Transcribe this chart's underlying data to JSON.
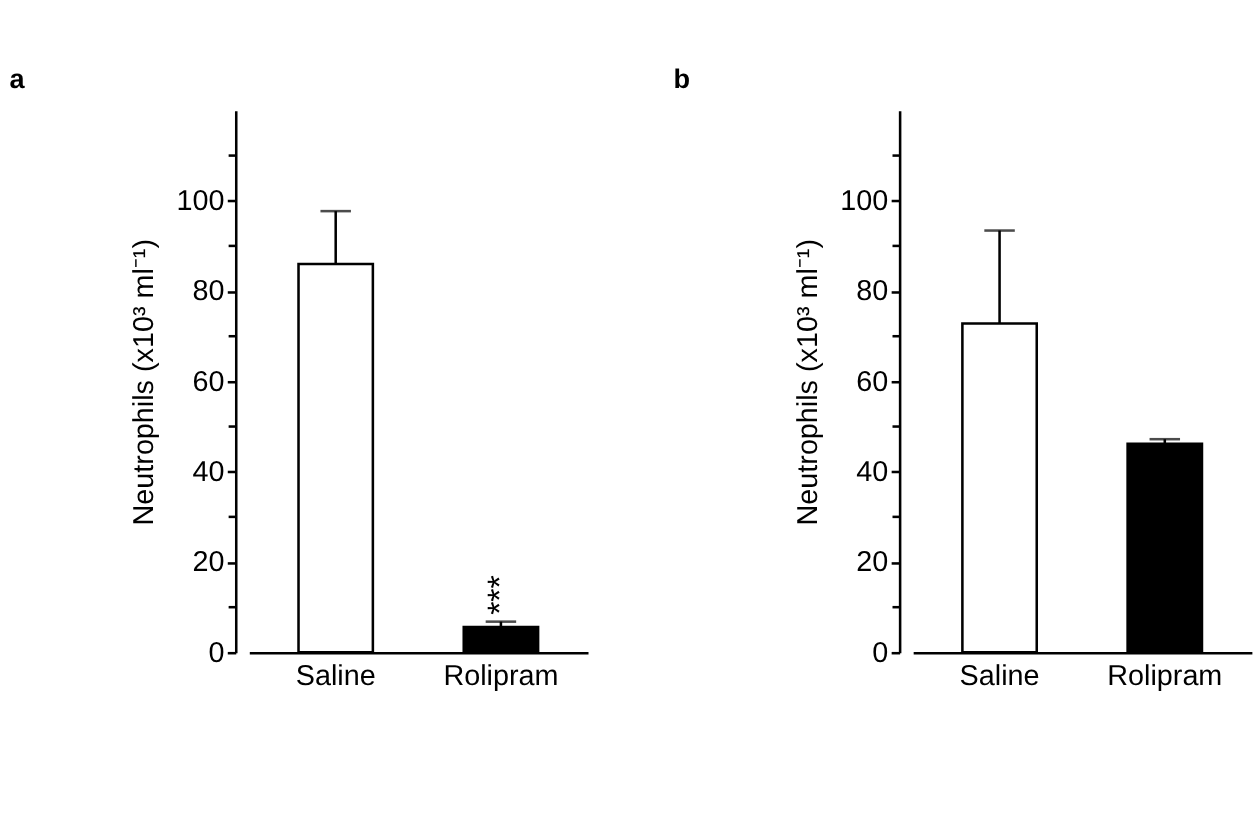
{
  "chart_data": [
    {
      "type": "bar",
      "title": "a",
      "ylabel": "Neutrophils (x10³ ml⁻¹)",
      "categories": [
        "Saline",
        "Rolipram"
      ],
      "values": [
        86,
        5.6
      ],
      "errors": [
        11.7,
        1.2
      ],
      "colors": [
        "#ffffff",
        "#000000"
      ],
      "ylim": [
        0,
        120
      ],
      "yticks": [
        0,
        {
          "value": 10,
          "label": null
        },
        20,
        {
          "value": 30,
          "label": null
        },
        40,
        {
          "value": 50,
          "label": null
        },
        60,
        {
          "value": 70,
          "label": null
        },
        80,
        {
          "value": 90,
          "label": null
        },
        100,
        {
          "value": 110,
          "label": null
        }
      ],
      "annotations": [
        {
          "text": "***",
          "x": "Rolipram",
          "y": 6.8
        }
      ],
      "grid": false
    },
    {
      "type": "bar",
      "title": "b",
      "ylabel": "Neutrophils (x10³ ml⁻¹)",
      "categories": [
        "Saline",
        "Rolipram"
      ],
      "values": [
        72.8,
        46.2
      ],
      "errors": [
        20.6,
        1
      ],
      "colors": [
        "#ffffff",
        "#000000"
      ],
      "ylim": [
        0,
        120
      ],
      "yticks": [
        0,
        {
          "value": 10,
          "label": null
        },
        20,
        {
          "value": 30,
          "label": null
        },
        40,
        {
          "value": 50,
          "label": null
        },
        60,
        {
          "value": 70,
          "label": null
        },
        80,
        {
          "value": 90,
          "label": null
        },
        100,
        {
          "value": 110,
          "label": null
        }
      ],
      "grid": false
    }
  ]
}
